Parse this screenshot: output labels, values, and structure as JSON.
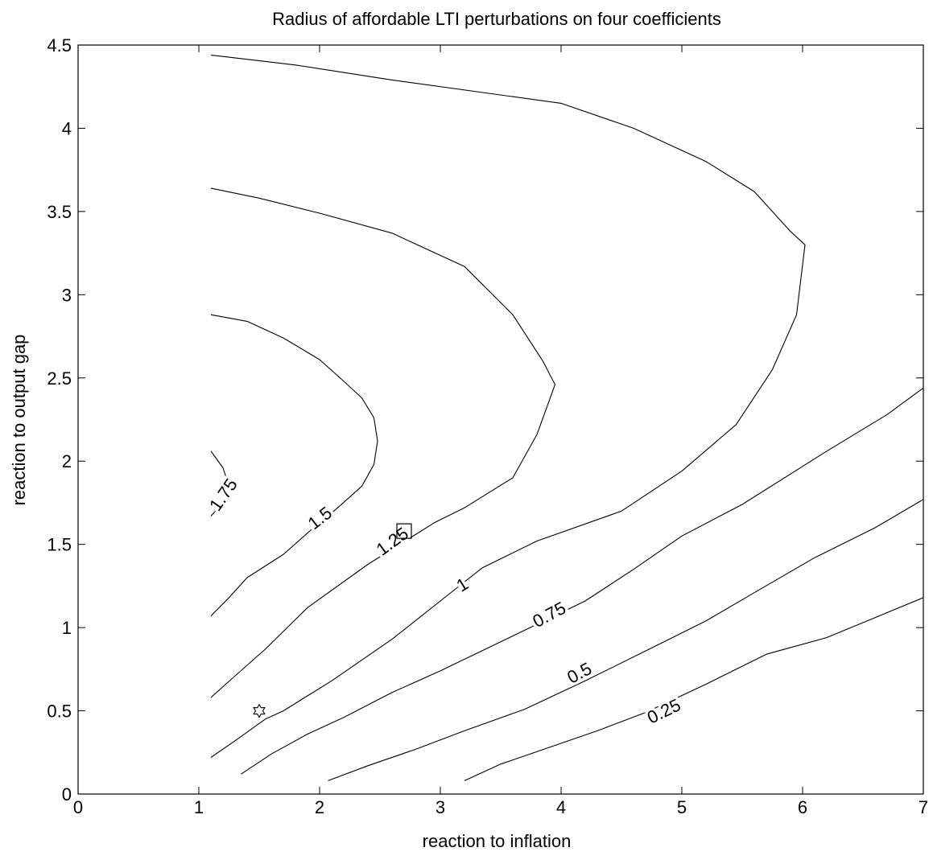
{
  "chart_data": {
    "type": "contour",
    "title": "Radius of affordable LTI perturbations on four coefficients",
    "xlabel": "reaction to inflation",
    "ylabel": "reaction to output gap",
    "xlim": [
      0,
      7
    ],
    "ylim": [
      0,
      4.5
    ],
    "xticks": [
      "0",
      "1",
      "2",
      "3",
      "4",
      "5",
      "6",
      "7"
    ],
    "yticks": [
      "0",
      "0.5",
      "1",
      "1.5",
      "2",
      "2.5",
      "3",
      "3.5",
      "4",
      "4.5"
    ],
    "xtick_values": [
      0,
      1,
      2,
      3,
      4,
      5,
      6,
      7
    ],
    "ytick_values": [
      0,
      0.5,
      1,
      1.5,
      2,
      2.5,
      3,
      3.5,
      4,
      4.5
    ],
    "grid": false,
    "line_color": "#000000",
    "contours": [
      {
        "level": "1.75",
        "label_pos": [
          1.2,
          1.8
        ],
        "label_angle": -55,
        "points": [
          [
            1.1,
            2.06
          ],
          [
            1.2,
            1.96
          ],
          [
            1.25,
            1.85
          ],
          [
            1.2,
            1.75
          ],
          [
            1.1,
            1.67
          ]
        ]
      },
      {
        "level": "1.5",
        "label_pos": [
          2.0,
          1.66
        ],
        "label_angle": -38,
        "points": [
          [
            1.1,
            2.88
          ],
          [
            1.4,
            2.84
          ],
          [
            1.7,
            2.74
          ],
          [
            2.0,
            2.61
          ],
          [
            2.2,
            2.48
          ],
          [
            2.35,
            2.38
          ],
          [
            2.45,
            2.26
          ],
          [
            2.48,
            2.12
          ],
          [
            2.45,
            1.98
          ],
          [
            2.35,
            1.85
          ],
          [
            2.15,
            1.72
          ],
          [
            1.95,
            1.6
          ],
          [
            1.7,
            1.44
          ],
          [
            1.4,
            1.3
          ],
          [
            1.25,
            1.18
          ],
          [
            1.1,
            1.07
          ]
        ]
      },
      {
        "level": "1.25",
        "label_pos": [
          2.6,
          1.52
        ],
        "label_angle": -36,
        "points": [
          [
            1.1,
            3.64
          ],
          [
            1.5,
            3.58
          ],
          [
            2.0,
            3.49
          ],
          [
            2.6,
            3.37
          ],
          [
            3.2,
            3.17
          ],
          [
            3.6,
            2.88
          ],
          [
            3.85,
            2.6
          ],
          [
            3.95,
            2.46
          ],
          [
            3.8,
            2.16
          ],
          [
            3.6,
            1.9
          ],
          [
            3.2,
            1.72
          ],
          [
            2.95,
            1.63
          ],
          [
            2.4,
            1.38
          ],
          [
            1.9,
            1.12
          ],
          [
            1.55,
            0.87
          ],
          [
            1.3,
            0.71
          ],
          [
            1.1,
            0.58
          ]
        ]
      },
      {
        "level": "1",
        "label_pos": [
          3.18,
          1.26
        ],
        "label_angle": -32,
        "points": [
          [
            1.1,
            4.44
          ],
          [
            1.8,
            4.38
          ],
          [
            2.6,
            4.29
          ],
          [
            3.4,
            4.21
          ],
          [
            4.0,
            4.15
          ],
          [
            4.6,
            4.0
          ],
          [
            5.2,
            3.8
          ],
          [
            5.6,
            3.62
          ],
          [
            5.9,
            3.38
          ],
          [
            6.02,
            3.3
          ],
          [
            5.95,
            2.88
          ],
          [
            5.75,
            2.55
          ],
          [
            5.45,
            2.22
          ],
          [
            5.0,
            1.94
          ],
          [
            4.5,
            1.7
          ],
          [
            3.8,
            1.52
          ],
          [
            3.35,
            1.36
          ],
          [
            3.0,
            1.16
          ],
          [
            2.6,
            0.93
          ],
          [
            2.1,
            0.68
          ],
          [
            1.7,
            0.5
          ],
          [
            1.55,
            0.45
          ],
          [
            1.3,
            0.32
          ],
          [
            1.1,
            0.22
          ]
        ]
      },
      {
        "level": "0.75",
        "label_pos": [
          3.9,
          1.08
        ],
        "label_angle": -28,
        "points": [
          [
            7.0,
            2.44
          ],
          [
            6.7,
            2.28
          ],
          [
            6.2,
            2.06
          ],
          [
            5.5,
            1.74
          ],
          [
            5.0,
            1.55
          ],
          [
            4.6,
            1.35
          ],
          [
            4.2,
            1.16
          ],
          [
            3.6,
            0.95
          ],
          [
            3.0,
            0.74
          ],
          [
            2.6,
            0.61
          ],
          [
            2.2,
            0.46
          ],
          [
            1.9,
            0.36
          ],
          [
            1.6,
            0.24
          ],
          [
            1.35,
            0.12
          ]
        ]
      },
      {
        "level": "0.5",
        "label_pos": [
          4.15,
          0.73
        ],
        "label_angle": -28,
        "points": [
          [
            7.0,
            1.77
          ],
          [
            6.6,
            1.6
          ],
          [
            6.1,
            1.42
          ],
          [
            5.6,
            1.21
          ],
          [
            5.2,
            1.04
          ],
          [
            4.7,
            0.86
          ],
          [
            4.2,
            0.68
          ],
          [
            3.7,
            0.51
          ],
          [
            3.2,
            0.38
          ],
          [
            2.8,
            0.27
          ],
          [
            2.4,
            0.17
          ],
          [
            2.07,
            0.08
          ]
        ]
      },
      {
        "level": "0.25",
        "label_pos": [
          4.85,
          0.5
        ],
        "label_angle": -26,
        "points": [
          [
            7.0,
            1.18
          ],
          [
            6.6,
            1.06
          ],
          [
            6.2,
            0.94
          ],
          [
            5.7,
            0.84
          ],
          [
            5.2,
            0.66
          ],
          [
            4.7,
            0.49
          ],
          [
            4.3,
            0.38
          ],
          [
            3.9,
            0.28
          ],
          [
            3.5,
            0.18
          ],
          [
            3.2,
            0.08
          ]
        ]
      }
    ],
    "markers": [
      {
        "shape": "star",
        "x": 1.5,
        "y": 0.5
      },
      {
        "shape": "square",
        "x": 2.7,
        "y": 1.58
      }
    ]
  }
}
